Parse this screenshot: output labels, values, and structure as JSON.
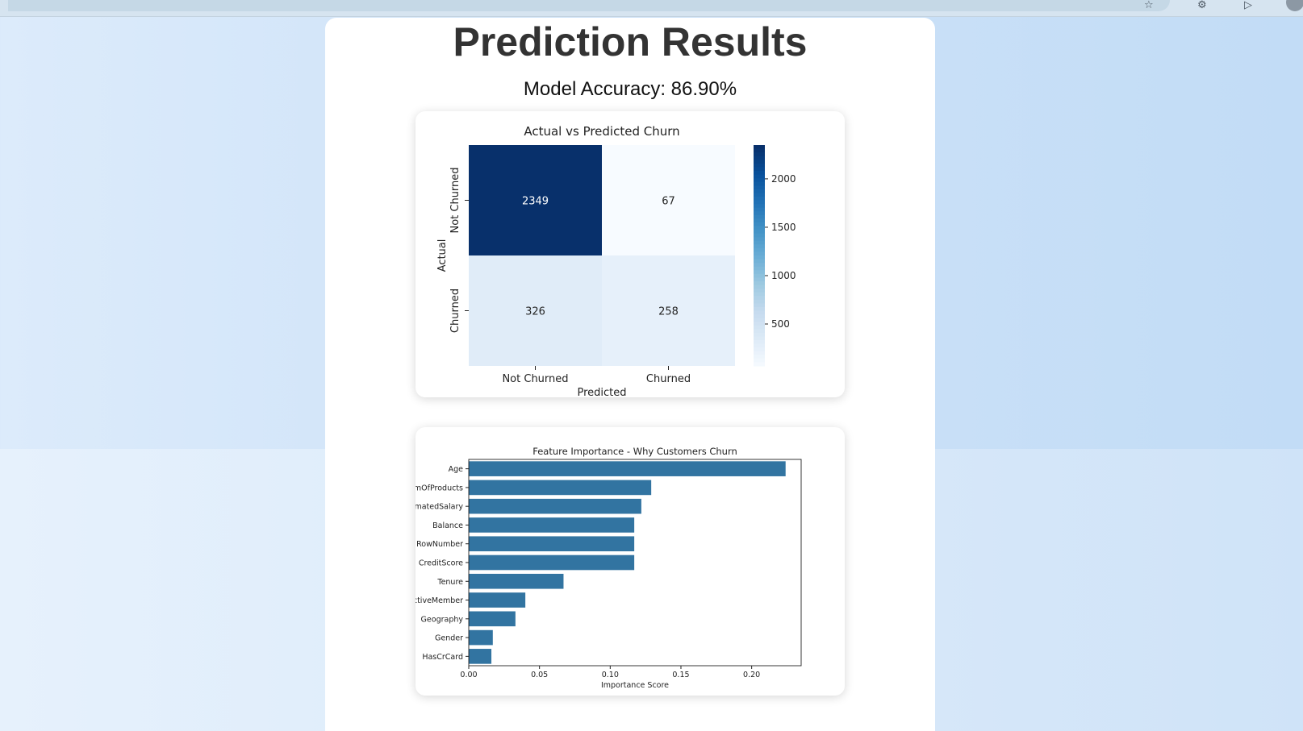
{
  "page": {
    "title": "Prediction Results",
    "accuracy_text": "Model Accuracy: 86.90%"
  },
  "browser": {
    "icons": [
      "star-icon",
      "gear-icon",
      "play-icon",
      "profile-avatar"
    ]
  },
  "chart_data": [
    {
      "type": "heatmap",
      "title": "Actual vs Predicted Churn",
      "xlabel": "Predicted",
      "ylabel": "Actual",
      "x_categories": [
        "Not Churned",
        "Churned"
      ],
      "y_categories": [
        "Not Churned",
        "Churned"
      ],
      "values": [
        [
          2349,
          67
        ],
        [
          326,
          258
        ]
      ],
      "colormap": "Blues",
      "vmin": 67,
      "vmax": 2349,
      "colorbar_ticks": [
        500,
        1000,
        1500,
        2000
      ],
      "colorbar_tick_labels": [
        "500",
        "1000",
        "1500",
        "2000"
      ]
    },
    {
      "type": "bar",
      "orientation": "horizontal",
      "title": "Feature Importance - Why Customers Churn",
      "xlabel": "Importance Score",
      "ylabel": "",
      "categories": [
        "Age",
        "NumOfProducts",
        "EstimatedSalary",
        "Balance",
        "RowNumber",
        "CreditScore",
        "Tenure",
        "IsActiveMember",
        "Geography",
        "Gender",
        "HasCrCard"
      ],
      "category_labels_visible": [
        "Age",
        "mOfProducts",
        "matedSalary",
        "Balance",
        "RowNumber",
        "CreditScore",
        "Tenure",
        "ctiveMember",
        "Geography",
        "Gender",
        "HasCrCard"
      ],
      "values": [
        0.224,
        0.129,
        0.122,
        0.117,
        0.117,
        0.117,
        0.067,
        0.04,
        0.033,
        0.017,
        0.016
      ],
      "xlim": [
        0,
        0.235
      ],
      "x_ticks": [
        0,
        0.05,
        0.1,
        0.15,
        0.2
      ],
      "x_tick_labels": [
        "0.00",
        "0.05",
        "0.10",
        "0.15",
        "0.20"
      ],
      "bar_color": "#3274a1"
    }
  ]
}
